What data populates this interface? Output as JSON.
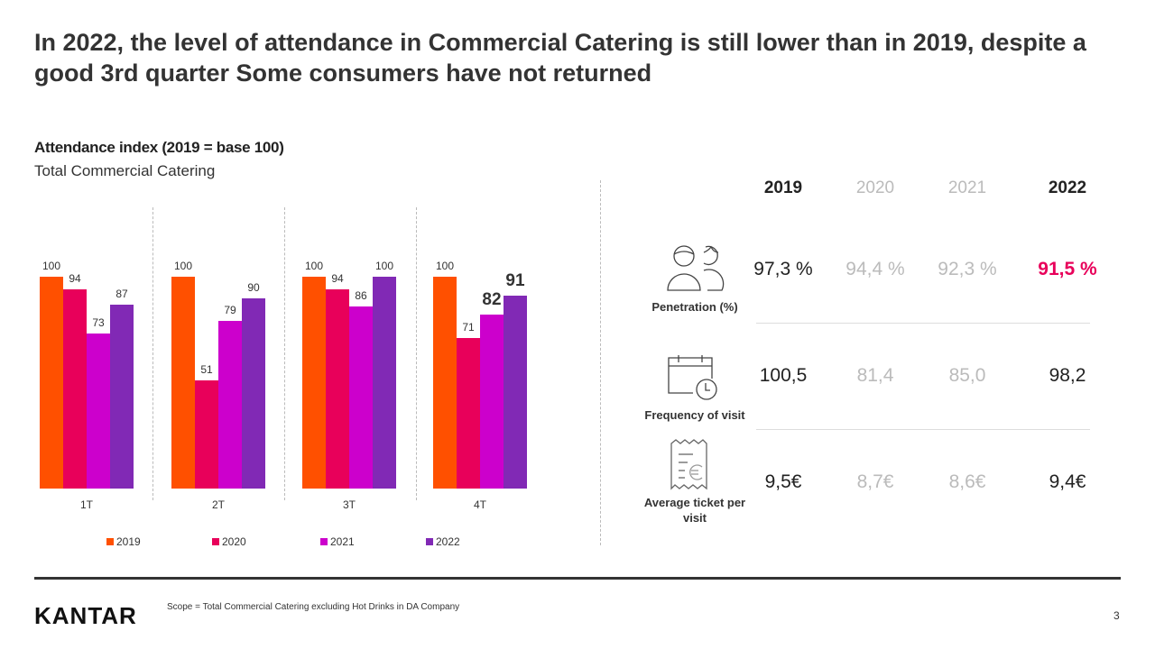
{
  "title": "In 2022, the level of attendance in Commercial Catering is still lower than in 2019, despite a good 3rd quarter Some consumers have not returned",
  "chart_data": {
    "type": "bar",
    "title": "Attendance index (2019 = base 100)",
    "subtitle": "Total Commercial Catering",
    "categories": [
      "1T",
      "2T",
      "3T",
      "4T"
    ],
    "series": [
      {
        "name": "2019",
        "color": "#FF5000",
        "values": [
          100,
          100,
          100,
          100
        ]
      },
      {
        "name": "2020",
        "color": "#E8005A",
        "values": [
          94,
          51,
          94,
          71
        ]
      },
      {
        "name": "2021",
        "color": "#CC00CC",
        "values": [
          73,
          79,
          86,
          82
        ]
      },
      {
        "name": "2022",
        "color": "#8129B5",
        "values": [
          87,
          90,
          100,
          91
        ]
      }
    ],
    "ylim": [
      0,
      100
    ],
    "grid": false,
    "legend": "bottom",
    "highlighted_labels": [
      [
        3,
        2
      ],
      [
        3,
        3
      ]
    ]
  },
  "table": {
    "years": [
      "2019",
      "2020",
      "2021",
      "2022"
    ],
    "rows": [
      {
        "label": "Penetration (%)",
        "icon": "people-icon",
        "values": [
          "97,3 %",
          "94,4 %",
          "92,3 %",
          "91,5 %"
        ]
      },
      {
        "label": "Frequency of visit",
        "icon": "calendar-clock-icon",
        "values": [
          "100,5",
          "81,4",
          "85,0",
          "98,2"
        ]
      },
      {
        "label": "Average ticket per visit",
        "icon": "receipt-euro-icon",
        "values": [
          "9,5€",
          "8,7€",
          "8,6€",
          "9,4€"
        ]
      }
    ],
    "colors": {
      "main": "#222222",
      "faded": "#BBBBBB",
      "highlight": "#E8005A"
    }
  },
  "footer": {
    "logo": "KANTAR",
    "scope": "Scope = Total Commercial Catering excluding Hot Drinks in DA Company",
    "page": "3"
  }
}
